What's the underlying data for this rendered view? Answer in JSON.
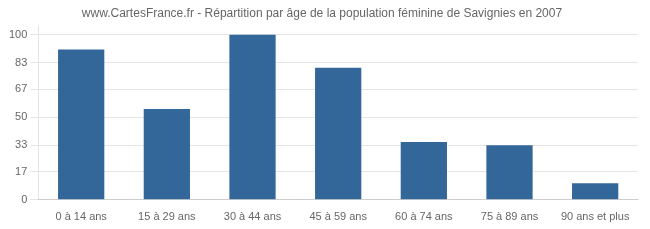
{
  "chart_data": {
    "type": "bar",
    "title": "www.CartesFrance.fr - Répartition par âge de la population féminine de Savignies en 2007",
    "categories": [
      "0 à 14 ans",
      "15 à 29 ans",
      "30 à 44 ans",
      "45 à 59 ans",
      "60 à 74 ans",
      "75 à 89 ans",
      "90 ans et plus"
    ],
    "values": [
      91,
      55,
      100,
      80,
      35,
      33,
      10
    ],
    "color": "#336699",
    "ylim": [
      0,
      105
    ],
    "yticks": [
      0,
      17,
      33,
      50,
      67,
      83,
      100
    ],
    "grid": true
  }
}
